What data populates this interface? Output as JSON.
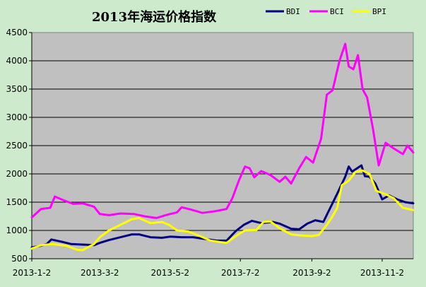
{
  "chart_data": {
    "type": "line",
    "title": "2013年海运价格指数",
    "xlabel": "",
    "ylabel": "",
    "ylim": [
      500,
      4500
    ],
    "yticks": [
      500,
      1000,
      1500,
      2000,
      2500,
      3000,
      3500,
      4000,
      4500
    ],
    "x_domain": [
      "2013-01-02",
      "2013-11-29"
    ],
    "xticks": [
      "2013-1-2",
      "2013-3-2",
      "2013-5-2",
      "2013-7-2",
      "2013-9-2",
      "2013-11-2"
    ],
    "xtick_dates": [
      "2013-01-02",
      "2013-03-02",
      "2013-05-02",
      "2013-07-02",
      "2013-09-02",
      "2013-11-02"
    ],
    "grid": true,
    "legend_position": "top-right",
    "series": [
      {
        "name": "BDI",
        "color": "#00007f",
        "points": [
          [
            "2013-01-02",
            700
          ],
          [
            "2013-01-08",
            720
          ],
          [
            "2013-01-15",
            760
          ],
          [
            "2013-01-19",
            840
          ],
          [
            "2013-01-28",
            800
          ],
          [
            "2013-02-05",
            760
          ],
          [
            "2013-02-15",
            750
          ],
          [
            "2013-02-25",
            740
          ],
          [
            "2013-03-02",
            780
          ],
          [
            "2013-03-10",
            830
          ],
          [
            "2013-03-20",
            880
          ],
          [
            "2013-03-30",
            930
          ],
          [
            "2013-04-05",
            930
          ],
          [
            "2013-04-15",
            880
          ],
          [
            "2013-04-25",
            870
          ],
          [
            "2013-05-02",
            890
          ],
          [
            "2013-05-12",
            880
          ],
          [
            "2013-05-22",
            880
          ],
          [
            "2013-06-01",
            850
          ],
          [
            "2013-06-11",
            820
          ],
          [
            "2013-06-20",
            820
          ],
          [
            "2013-06-28",
            990
          ],
          [
            "2013-07-05",
            1100
          ],
          [
            "2013-07-12",
            1170
          ],
          [
            "2013-07-20",
            1130
          ],
          [
            "2013-07-30",
            1150
          ],
          [
            "2013-08-05",
            1120
          ],
          [
            "2013-08-15",
            1030
          ],
          [
            "2013-08-22",
            1020
          ],
          [
            "2013-08-29",
            1120
          ],
          [
            "2013-09-05",
            1180
          ],
          [
            "2013-09-12",
            1150
          ],
          [
            "2013-09-18",
            1400
          ],
          [
            "2013-09-24",
            1650
          ],
          [
            "2013-10-01",
            1950
          ],
          [
            "2013-10-04",
            2130
          ],
          [
            "2013-10-07",
            2040
          ],
          [
            "2013-10-12",
            2110
          ],
          [
            "2013-10-15",
            2150
          ],
          [
            "2013-10-18",
            1960
          ],
          [
            "2013-10-22",
            1950
          ],
          [
            "2013-10-27",
            1830
          ],
          [
            "2013-11-02",
            1550
          ],
          [
            "2013-11-08",
            1620
          ],
          [
            "2013-11-15",
            1550
          ],
          [
            "2013-11-22",
            1500
          ],
          [
            "2013-11-29",
            1480
          ]
        ]
      },
      {
        "name": "BCI",
        "color": "#ff00ff",
        "points": [
          [
            "2013-01-02",
            1230
          ],
          [
            "2013-01-10",
            1380
          ],
          [
            "2013-01-18",
            1400
          ],
          [
            "2013-01-22",
            1600
          ],
          [
            "2013-01-30",
            1530
          ],
          [
            "2013-02-07",
            1470
          ],
          [
            "2013-02-15",
            1480
          ],
          [
            "2013-02-25",
            1420
          ],
          [
            "2013-03-02",
            1290
          ],
          [
            "2013-03-10",
            1270
          ],
          [
            "2013-03-20",
            1300
          ],
          [
            "2013-04-01",
            1290
          ],
          [
            "2013-04-10",
            1250
          ],
          [
            "2013-04-20",
            1220
          ],
          [
            "2013-04-30",
            1280
          ],
          [
            "2013-05-08",
            1320
          ],
          [
            "2013-05-12",
            1410
          ],
          [
            "2013-05-20",
            1370
          ],
          [
            "2013-05-30",
            1310
          ],
          [
            "2013-06-10",
            1340
          ],
          [
            "2013-06-20",
            1380
          ],
          [
            "2013-06-25",
            1570
          ],
          [
            "2013-07-01",
            1900
          ],
          [
            "2013-07-06",
            2130
          ],
          [
            "2013-07-10",
            2100
          ],
          [
            "2013-07-14",
            1940
          ],
          [
            "2013-07-20",
            2050
          ],
          [
            "2013-07-28",
            1980
          ],
          [
            "2013-08-05",
            1860
          ],
          [
            "2013-08-10",
            1950
          ],
          [
            "2013-08-15",
            1830
          ],
          [
            "2013-08-22",
            2100
          ],
          [
            "2013-08-28",
            2300
          ],
          [
            "2013-09-03",
            2200
          ],
          [
            "2013-09-10",
            2620
          ],
          [
            "2013-09-15",
            3400
          ],
          [
            "2013-09-20",
            3480
          ],
          [
            "2013-09-26",
            4000
          ],
          [
            "2013-10-01",
            4300
          ],
          [
            "2013-10-04",
            3900
          ],
          [
            "2013-10-08",
            3850
          ],
          [
            "2013-10-12",
            4100
          ],
          [
            "2013-10-16",
            3500
          ],
          [
            "2013-10-20",
            3350
          ],
          [
            "2013-10-25",
            2800
          ],
          [
            "2013-10-30",
            2150
          ],
          [
            "2013-11-05",
            2550
          ],
          [
            "2013-11-12",
            2450
          ],
          [
            "2013-11-20",
            2350
          ],
          [
            "2013-11-24",
            2500
          ],
          [
            "2013-11-29",
            2380
          ]
        ]
      },
      {
        "name": "BPI",
        "color": "#ffff00",
        "points": [
          [
            "2013-01-02",
            680
          ],
          [
            "2013-01-10",
            740
          ],
          [
            "2013-01-20",
            760
          ],
          [
            "2013-02-01",
            730
          ],
          [
            "2013-02-10",
            660
          ],
          [
            "2013-02-15",
            650
          ],
          [
            "2013-02-25",
            760
          ],
          [
            "2013-03-02",
            880
          ],
          [
            "2013-03-10",
            1000
          ],
          [
            "2013-03-20",
            1100
          ],
          [
            "2013-03-30",
            1200
          ],
          [
            "2013-04-05",
            1220
          ],
          [
            "2013-04-15",
            1130
          ],
          [
            "2013-04-25",
            1150
          ],
          [
            "2013-05-01",
            1100
          ],
          [
            "2013-05-08",
            1000
          ],
          [
            "2013-05-18",
            980
          ],
          [
            "2013-05-28",
            900
          ],
          [
            "2013-06-06",
            820
          ],
          [
            "2013-06-16",
            790
          ],
          [
            "2013-06-20",
            780
          ],
          [
            "2013-06-28",
            900
          ],
          [
            "2013-07-06",
            1000
          ],
          [
            "2013-07-16",
            1010
          ],
          [
            "2013-07-22",
            1150
          ],
          [
            "2013-07-28",
            1160
          ],
          [
            "2013-08-05",
            1040
          ],
          [
            "2013-08-15",
            930
          ],
          [
            "2013-08-25",
            910
          ],
          [
            "2013-09-02",
            900
          ],
          [
            "2013-09-08",
            920
          ],
          [
            "2013-09-15",
            1100
          ],
          [
            "2013-09-20",
            1250
          ],
          [
            "2013-09-24",
            1400
          ],
          [
            "2013-09-28",
            1800
          ],
          [
            "2013-10-04",
            1880
          ],
          [
            "2013-10-10",
            2040
          ],
          [
            "2013-10-16",
            2060
          ],
          [
            "2013-10-22",
            2000
          ],
          [
            "2013-10-28",
            1700
          ],
          [
            "2013-11-05",
            1640
          ],
          [
            "2013-11-12",
            1570
          ],
          [
            "2013-11-20",
            1400
          ],
          [
            "2013-11-29",
            1360
          ]
        ]
      }
    ]
  }
}
